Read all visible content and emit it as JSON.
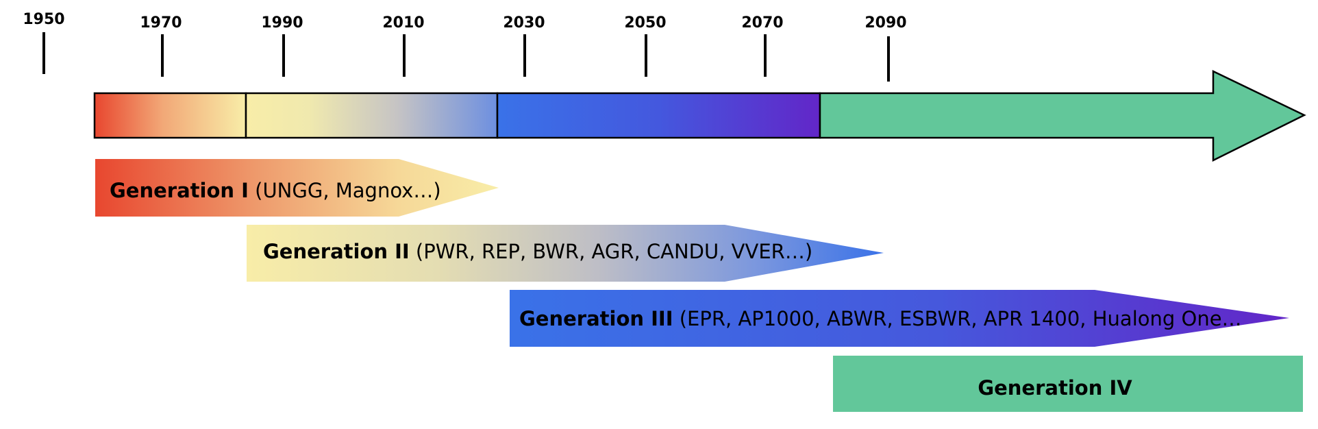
{
  "axis": {
    "years": [
      "1950",
      "1970",
      "1990",
      "2010",
      "2030",
      "2050",
      "2070",
      "2090"
    ]
  },
  "generations": [
    {
      "name": "Generation I",
      "models": " (UNGG, Magnox…)"
    },
    {
      "name": "Generation II",
      "models": " (PWR, REP, BWR, AGR, CANDU, VVER…)"
    },
    {
      "name": "Generation III",
      "models": " (EPR, AP1000, ABWR, ESBWR, APR 1400, Hualong One…"
    },
    {
      "name": "Generation IV",
      "models": ""
    }
  ],
  "colors": {
    "gen1_start": "#E8472F",
    "gen1_end": "#F8EDA8",
    "gen2_start": "#F8EDA8",
    "gen2_mid": "#C9C7C2",
    "gen2_end": "#3A72E8",
    "gen3_start": "#3A72E8",
    "gen3_end": "#6226C8",
    "gen4": "#62C79A",
    "outline": "#000000"
  }
}
